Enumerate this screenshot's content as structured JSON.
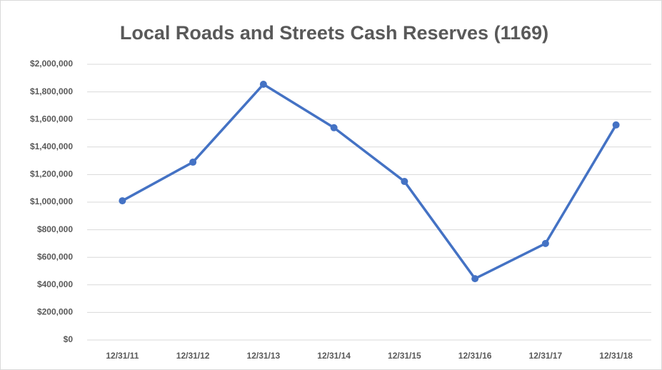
{
  "chart_data": {
    "type": "line",
    "title": "Local Roads and Streets Cash Reserves (1169)",
    "categories": [
      "12/31/11",
      "12/31/12",
      "12/31/13",
      "12/31/14",
      "12/31/15",
      "12/31/16",
      "12/31/17",
      "12/31/18"
    ],
    "series": [
      {
        "name": "Cash Reserves",
        "color": "#4472c4",
        "values": [
          1010000,
          1290000,
          1855000,
          1540000,
          1150000,
          445000,
          700000,
          1560000
        ]
      }
    ],
    "ylim": [
      0,
      2000000
    ],
    "yticks": [
      {
        "value": 0,
        "label": "$0"
      },
      {
        "value": 200000,
        "label": "$200,000"
      },
      {
        "value": 400000,
        "label": "$400,000"
      },
      {
        "value": 600000,
        "label": "$600,000"
      },
      {
        "value": 800000,
        "label": "$800,000"
      },
      {
        "value": 1000000,
        "label": "$1,000,000"
      },
      {
        "value": 1200000,
        "label": "$1,200,000"
      },
      {
        "value": 1400000,
        "label": "$1,400,000"
      },
      {
        "value": 1600000,
        "label": "$1,600,000"
      },
      {
        "value": 1800000,
        "label": "$1,800,000"
      },
      {
        "value": 2000000,
        "label": "$2,000,000"
      }
    ],
    "grid": true
  }
}
